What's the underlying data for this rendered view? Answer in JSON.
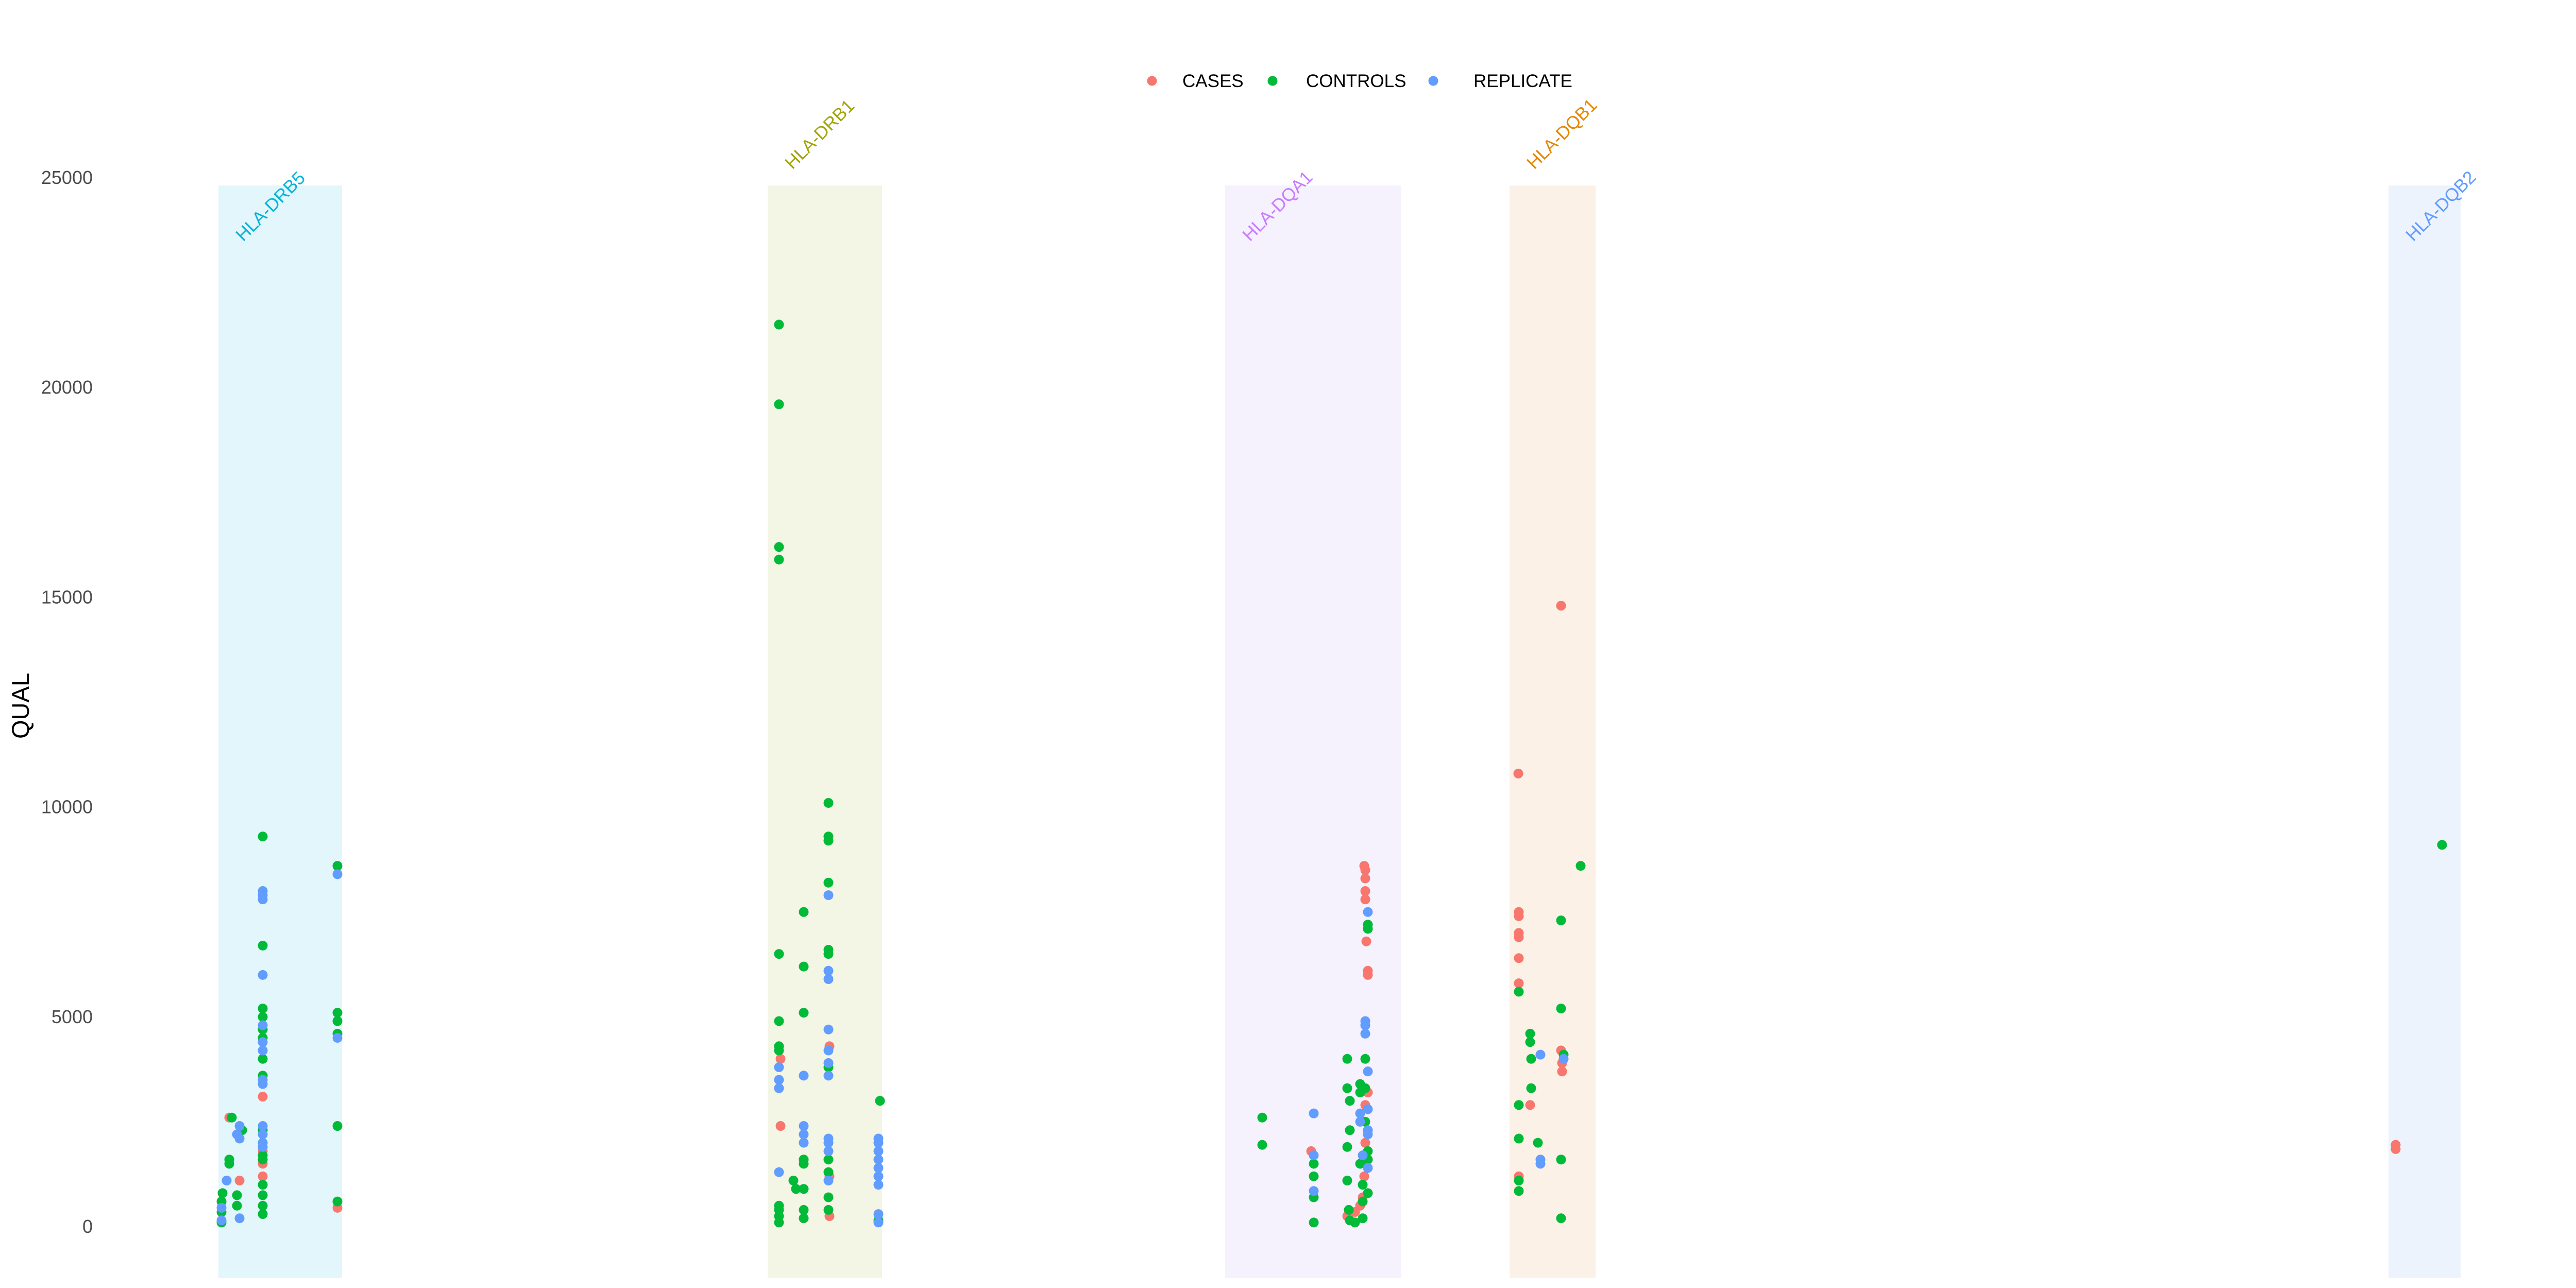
{
  "chart_data": {
    "type": "scatter",
    "ylabel": "QUAL",
    "xlabel": "",
    "ylim": [
      -1200,
      25000
    ],
    "y_ticks": [
      "0",
      "5000",
      "10000",
      "15000",
      "20000",
      "25000"
    ],
    "y_tick_values": [
      0,
      5000,
      10000,
      15000,
      20000,
      25000
    ],
    "grid": false,
    "legend": {
      "placement": "top-center",
      "entries": [
        {
          "name": "CASES",
          "color": "#F8766D"
        },
        {
          "name": "CONTROLS",
          "color": "#00BA38"
        },
        {
          "name": "REPLICATE",
          "color": "#619CFF"
        }
      ]
    },
    "x_axis": {
      "units": "genomic position (unlabeled)",
      "xlim": [
        0,
        5000
      ]
    },
    "regions": [
      {
        "label": "HLA-DRB5",
        "x_start": 424,
        "x_end": 664,
        "fill": "#e2f6fc",
        "color": "#00b4d8"
      },
      {
        "label": "HLA-DRB1",
        "x_start": 1490,
        "x_end": 1712,
        "fill": "#f3f5e5",
        "color": "#a3a500"
      },
      {
        "label": "HLA-DQA1",
        "x_start": 2378,
        "x_end": 2720,
        "fill": "#f5f1fd",
        "color": "#c77cff"
      },
      {
        "label": "HLA-DQB1",
        "x_start": 2930,
        "x_end": 3097,
        "fill": "#fbf1e6",
        "color": "#e58700"
      },
      {
        "label": "HLA-DQB2",
        "x_start": 4636,
        "x_end": 4776,
        "fill": "#edf3fc",
        "color": "#619cff"
      }
    ],
    "series": [
      {
        "name": "CASES",
        "color": "#F8766D",
        "points": [
          [
            445,
            2600
          ],
          [
            465,
            1100
          ],
          [
            510,
            3100
          ],
          [
            510,
            1200
          ],
          [
            510,
            1500
          ],
          [
            510,
            1800
          ],
          [
            655,
            450
          ],
          [
            1515,
            2400
          ],
          [
            1515,
            4000
          ],
          [
            1560,
            1600
          ],
          [
            1610,
            4300
          ],
          [
            1610,
            250
          ],
          [
            1610,
            1200
          ],
          [
            2545,
            1800
          ],
          [
            2615,
            250
          ],
          [
            2630,
            350
          ],
          [
            2640,
            500
          ],
          [
            2648,
            8600
          ],
          [
            2650,
            8500
          ],
          [
            2650,
            8300
          ],
          [
            2650,
            8000
          ],
          [
            2650,
            7800
          ],
          [
            2652,
            6800
          ],
          [
            2655,
            6100
          ],
          [
            2655,
            6000
          ],
          [
            2655,
            3200
          ],
          [
            2650,
            2900
          ],
          [
            2650,
            2000
          ],
          [
            2648,
            1200
          ],
          [
            2645,
            700
          ],
          [
            2947,
            10800
          ],
          [
            2948,
            7500
          ],
          [
            2948,
            7400
          ],
          [
            2948,
            7000
          ],
          [
            2948,
            6900
          ],
          [
            2948,
            6400
          ],
          [
            2948,
            5800
          ],
          [
            2948,
            1200
          ],
          [
            2970,
            2900
          ],
          [
            3030,
            14800
          ],
          [
            3030,
            4200
          ],
          [
            3032,
            3900
          ],
          [
            3032,
            3700
          ],
          [
            4650,
            1950
          ],
          [
            4650,
            1850
          ]
        ]
      },
      {
        "name": "CONTROLS",
        "color": "#00BA38",
        "points": [
          [
            430,
            100
          ],
          [
            430,
            350
          ],
          [
            430,
            600
          ],
          [
            432,
            800
          ],
          [
            445,
            1500
          ],
          [
            445,
            1600
          ],
          [
            450,
            2600
          ],
          [
            460,
            750
          ],
          [
            460,
            500
          ],
          [
            470,
            2300
          ],
          [
            510,
            9300
          ],
          [
            510,
            6700
          ],
          [
            510,
            5200
          ],
          [
            510,
            5000
          ],
          [
            510,
            4700
          ],
          [
            510,
            4500
          ],
          [
            510,
            4000
          ],
          [
            510,
            3600
          ],
          [
            510,
            2300
          ],
          [
            510,
            1700
          ],
          [
            510,
            1600
          ],
          [
            510,
            1000
          ],
          [
            510,
            750
          ],
          [
            510,
            500
          ],
          [
            510,
            300
          ],
          [
            655,
            8600
          ],
          [
            655,
            5100
          ],
          [
            655,
            4900
          ],
          [
            655,
            4600
          ],
          [
            655,
            2400
          ],
          [
            655,
            600
          ],
          [
            1512,
            21500
          ],
          [
            1512,
            19600
          ],
          [
            1512,
            16200
          ],
          [
            1512,
            15900
          ],
          [
            1512,
            6500
          ],
          [
            1512,
            4900
          ],
          [
            1512,
            4300
          ],
          [
            1512,
            4200
          ],
          [
            1512,
            500
          ],
          [
            1512,
            400
          ],
          [
            1512,
            250
          ],
          [
            1512,
            100
          ],
          [
            1540,
            1100
          ],
          [
            1545,
            900
          ],
          [
            1560,
            900
          ],
          [
            1560,
            7500
          ],
          [
            1560,
            6200
          ],
          [
            1560,
            5100
          ],
          [
            1560,
            1500
          ],
          [
            1560,
            1600
          ],
          [
            1560,
            400
          ],
          [
            1560,
            200
          ],
          [
            1608,
            10100
          ],
          [
            1608,
            9300
          ],
          [
            1608,
            9200
          ],
          [
            1608,
            8200
          ],
          [
            1608,
            6600
          ],
          [
            1608,
            6500
          ],
          [
            1608,
            3800
          ],
          [
            1608,
            1600
          ],
          [
            1608,
            1300
          ],
          [
            1608,
            700
          ],
          [
            1608,
            400
          ],
          [
            1708,
            3000
          ],
          [
            1705,
            150
          ],
          [
            2450,
            2600
          ],
          [
            2450,
            1950
          ],
          [
            2550,
            1500
          ],
          [
            2550,
            1200
          ],
          [
            2550,
            700
          ],
          [
            2550,
            100
          ],
          [
            2615,
            4000
          ],
          [
            2615,
            3300
          ],
          [
            2620,
            3000
          ],
          [
            2620,
            2300
          ],
          [
            2615,
            1900
          ],
          [
            2615,
            1100
          ],
          [
            2618,
            400
          ],
          [
            2620,
            150
          ],
          [
            2630,
            100
          ],
          [
            2640,
            3200
          ],
          [
            2640,
            3400
          ],
          [
            2640,
            1500
          ],
          [
            2645,
            1000
          ],
          [
            2645,
            600
          ],
          [
            2645,
            200
          ],
          [
            2650,
            4000
          ],
          [
            2650,
            3300
          ],
          [
            2650,
            2500
          ],
          [
            2655,
            7200
          ],
          [
            2655,
            7100
          ],
          [
            2655,
            1800
          ],
          [
            2655,
            1600
          ],
          [
            2655,
            800
          ],
          [
            2948,
            5600
          ],
          [
            2948,
            2900
          ],
          [
            2948,
            2100
          ],
          [
            2948,
            1100
          ],
          [
            2948,
            850
          ],
          [
            2970,
            4600
          ],
          [
            2970,
            4400
          ],
          [
            2972,
            3300
          ],
          [
            2972,
            4000
          ],
          [
            2985,
            2000
          ],
          [
            3030,
            7300
          ],
          [
            3030,
            5200
          ],
          [
            3035,
            4100
          ],
          [
            3030,
            1600
          ],
          [
            3030,
            200
          ],
          [
            3068,
            8600
          ],
          [
            4740,
            9100
          ]
        ]
      },
      {
        "name": "REPLICATE",
        "color": "#619CFF",
        "points": [
          [
            430,
            150
          ],
          [
            430,
            450
          ],
          [
            440,
            1100
          ],
          [
            460,
            2200
          ],
          [
            465,
            2400
          ],
          [
            465,
            2100
          ],
          [
            465,
            200
          ],
          [
            510,
            8000
          ],
          [
            510,
            7900
          ],
          [
            510,
            7800
          ],
          [
            510,
            6000
          ],
          [
            510,
            4800
          ],
          [
            510,
            4400
          ],
          [
            510,
            4200
          ],
          [
            510,
            3500
          ],
          [
            510,
            3400
          ],
          [
            510,
            2400
          ],
          [
            510,
            2200
          ],
          [
            510,
            2000
          ],
          [
            510,
            1900
          ],
          [
            655,
            8400
          ],
          [
            655,
            4500
          ],
          [
            1512,
            3800
          ],
          [
            1512,
            3500
          ],
          [
            1512,
            3300
          ],
          [
            1512,
            1300
          ],
          [
            1560,
            3600
          ],
          [
            1560,
            2400
          ],
          [
            1560,
            2200
          ],
          [
            1560,
            2000
          ],
          [
            1608,
            7900
          ],
          [
            1608,
            6100
          ],
          [
            1608,
            5900
          ],
          [
            1608,
            4700
          ],
          [
            1608,
            4200
          ],
          [
            1608,
            3900
          ],
          [
            1608,
            3600
          ],
          [
            1608,
            2100
          ],
          [
            1608,
            2000
          ],
          [
            1608,
            1800
          ],
          [
            1608,
            1100
          ],
          [
            1705,
            2100
          ],
          [
            1705,
            2000
          ],
          [
            1705,
            1800
          ],
          [
            1705,
            1600
          ],
          [
            1705,
            1400
          ],
          [
            1705,
            1200
          ],
          [
            1705,
            1000
          ],
          [
            1705,
            300
          ],
          [
            1705,
            100
          ],
          [
            2550,
            2700
          ],
          [
            2550,
            1700
          ],
          [
            2550,
            850
          ],
          [
            2640,
            2700
          ],
          [
            2640,
            2500
          ],
          [
            2645,
            1700
          ],
          [
            2650,
            4900
          ],
          [
            2650,
            4800
          ],
          [
            2650,
            4600
          ],
          [
            2655,
            7500
          ],
          [
            2655,
            3700
          ],
          [
            2655,
            2800
          ],
          [
            2655,
            2300
          ],
          [
            2655,
            2200
          ],
          [
            2655,
            1400
          ],
          [
            2990,
            4100
          ],
          [
            2990,
            1600
          ],
          [
            2990,
            1500
          ],
          [
            3035,
            4000
          ]
        ]
      }
    ]
  }
}
